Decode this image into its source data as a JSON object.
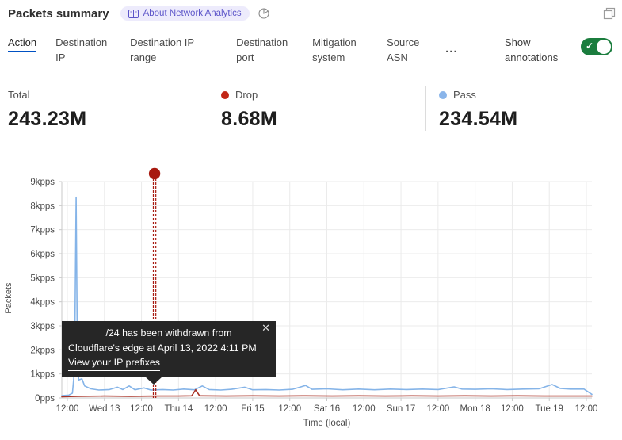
{
  "header": {
    "title": "Packets summary",
    "badge_label": "About Network Analytics"
  },
  "tabs": [
    {
      "label": "Action",
      "active": true
    },
    {
      "label": "Destination IP",
      "active": false
    },
    {
      "label": "Destination IP range",
      "active": false
    },
    {
      "label": "Destination port",
      "active": false
    },
    {
      "label": "Mitigation system",
      "active": false
    },
    {
      "label": "Source ASN",
      "active": false
    }
  ],
  "tabs_more_label": "...",
  "annotations_toggle": {
    "label": "Show annotations",
    "on": true,
    "check_glyph": "✓"
  },
  "stats": {
    "total": {
      "label": "Total",
      "value": "243.23M"
    },
    "drop": {
      "label": "Drop",
      "value": "8.68M",
      "dot_color": "#c22717"
    },
    "pass": {
      "label": "Pass",
      "value": "234.54M",
      "dot_color": "#8ab5ea"
    }
  },
  "tooltip": {
    "line1": "/24 has been withdrawn from",
    "line2": "Cloudflare's edge at April 13, 2022 4:11 PM",
    "link": "View your IP prefixes",
    "close_glyph": "✕"
  },
  "colors": {
    "accent_blue": "#0051c3",
    "toggle_green": "#1b7d3e",
    "grid": "#ebebeb",
    "axis": "#c9c9c9",
    "tick_text": "#4a4a4a",
    "tooltip_bg": "#262626",
    "badge_bg": "#edebfc",
    "badge_text": "#5c55c9"
  },
  "chart_data": {
    "type": "line",
    "title": "Packets summary",
    "xlabel": "Time (local)",
    "ylabel": "Packets",
    "unit": "kpps",
    "ylim": [
      0,
      9
    ],
    "grid": true,
    "legend_position": "top (stats row)",
    "y_ticks": [
      "0pps",
      "1kpps",
      "2kpps",
      "3kpps",
      "4kpps",
      "5kpps",
      "6kpps",
      "7kpps",
      "8kpps",
      "9kpps"
    ],
    "x_ticks": [
      "12:00",
      "Wed 13",
      "12:00",
      "Thu 14",
      "12:00",
      "Fri 15",
      "12:00",
      "Sat 16",
      "12:00",
      "Sun 17",
      "12:00",
      "Mon 18",
      "12:00",
      "Tue 19",
      "12:00"
    ],
    "series": [
      {
        "name": "Pass",
        "color": "#85b4e8",
        "total": "234.54M",
        "points": [
          [
            0.0,
            0.1
          ],
          [
            0.013,
            0.12
          ],
          [
            0.02,
            0.2
          ],
          [
            0.024,
            1.2
          ],
          [
            0.027,
            8.35
          ],
          [
            0.0295,
            1.5
          ],
          [
            0.032,
            0.75
          ],
          [
            0.038,
            0.8
          ],
          [
            0.043,
            0.5
          ],
          [
            0.055,
            0.38
          ],
          [
            0.07,
            0.33
          ],
          [
            0.09,
            0.35
          ],
          [
            0.105,
            0.45
          ],
          [
            0.115,
            0.35
          ],
          [
            0.127,
            0.5
          ],
          [
            0.138,
            0.34
          ],
          [
            0.155,
            0.42
          ],
          [
            0.168,
            0.33
          ],
          [
            0.19,
            0.35
          ],
          [
            0.21,
            0.33
          ],
          [
            0.23,
            0.37
          ],
          [
            0.25,
            0.34
          ],
          [
            0.265,
            0.5
          ],
          [
            0.278,
            0.35
          ],
          [
            0.3,
            0.33
          ],
          [
            0.32,
            0.36
          ],
          [
            0.345,
            0.45
          ],
          [
            0.36,
            0.34
          ],
          [
            0.385,
            0.35
          ],
          [
            0.41,
            0.33
          ],
          [
            0.435,
            0.36
          ],
          [
            0.46,
            0.52
          ],
          [
            0.472,
            0.36
          ],
          [
            0.5,
            0.38
          ],
          [
            0.53,
            0.34
          ],
          [
            0.56,
            0.37
          ],
          [
            0.59,
            0.34
          ],
          [
            0.62,
            0.37
          ],
          [
            0.65,
            0.35
          ],
          [
            0.68,
            0.37
          ],
          [
            0.71,
            0.35
          ],
          [
            0.74,
            0.46
          ],
          [
            0.755,
            0.37
          ],
          [
            0.78,
            0.36
          ],
          [
            0.81,
            0.38
          ],
          [
            0.84,
            0.35
          ],
          [
            0.87,
            0.37
          ],
          [
            0.9,
            0.38
          ],
          [
            0.925,
            0.56
          ],
          [
            0.94,
            0.4
          ],
          [
            0.96,
            0.37
          ],
          [
            0.985,
            0.37
          ],
          [
            1.0,
            0.15
          ]
        ]
      },
      {
        "name": "Drop",
        "color": "#a93226",
        "total": "8.68M",
        "points": [
          [
            0.0,
            0.05
          ],
          [
            0.03,
            0.07
          ],
          [
            0.08,
            0.08
          ],
          [
            0.13,
            0.07
          ],
          [
            0.18,
            0.08
          ],
          [
            0.22,
            0.08
          ],
          [
            0.245,
            0.09
          ],
          [
            0.2525,
            0.34
          ],
          [
            0.26,
            0.09
          ],
          [
            0.31,
            0.08
          ],
          [
            0.36,
            0.09
          ],
          [
            0.41,
            0.08
          ],
          [
            0.46,
            0.09
          ],
          [
            0.51,
            0.08
          ],
          [
            0.56,
            0.09
          ],
          [
            0.61,
            0.08
          ],
          [
            0.66,
            0.09
          ],
          [
            0.71,
            0.08
          ],
          [
            0.76,
            0.09
          ],
          [
            0.81,
            0.08
          ],
          [
            0.86,
            0.09
          ],
          [
            0.91,
            0.08
          ],
          [
            0.96,
            0.08
          ],
          [
            1.0,
            0.08
          ]
        ]
      }
    ],
    "annotation": {
      "x": 0.175,
      "time": "April 13, 2022 4:11 PM",
      "label": "/24 has been withdrawn from Cloudflare's edge at April 13, 2022 4:11 PM",
      "color": "#a8190f",
      "style": "double dashed vertical line with dot marker at top"
    }
  }
}
